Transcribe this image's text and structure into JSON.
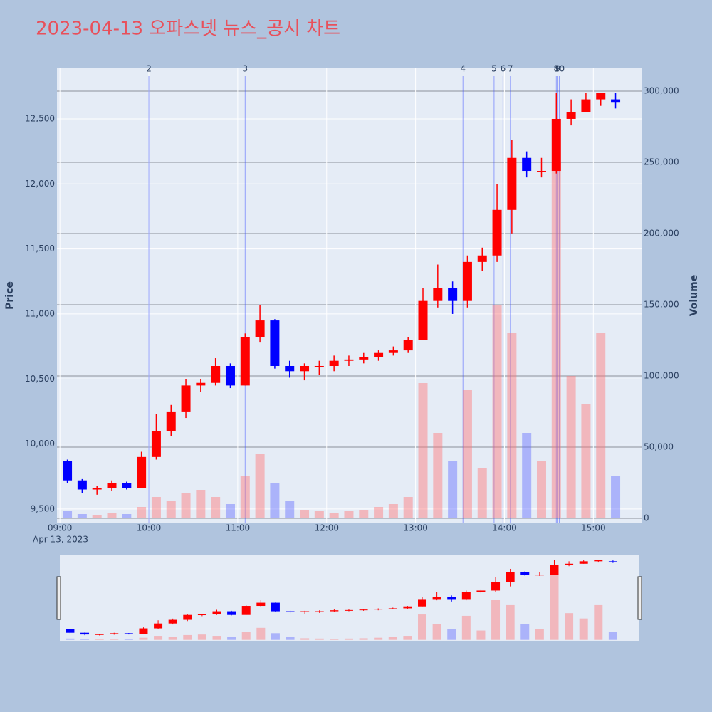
{
  "chart_data": {
    "type": "candlestick",
    "title": "2023-04-13 오파스넷 뉴스_공시 차트",
    "y_label": "Price",
    "y2_label": "Volume",
    "x_date_label": "Apr 13, 2023",
    "increasing_color": "#ff0000",
    "decreasing_color": "#0000ff",
    "volume_increasing_color": "rgba(255,120,120,0.45)",
    "volume_decreasing_color": "rgba(100,110,255,0.45)",
    "news_color": "rgba(60,80,255,0.5)",
    "grid": true,
    "x": [
      "09:00",
      "09:10",
      "09:20",
      "09:30",
      "09:40",
      "09:50",
      "10:00",
      "10:10",
      "10:20",
      "10:30",
      "10:40",
      "10:50",
      "11:00",
      "11:10",
      "11:20",
      "11:30",
      "11:40",
      "11:50",
      "12:00",
      "12:10",
      "12:20",
      "12:30",
      "12:40",
      "12:50",
      "13:00",
      "13:10",
      "13:20",
      "13:30",
      "13:40",
      "13:50",
      "14:00",
      "14:10",
      "14:20",
      "14:30",
      "14:40",
      "14:50",
      "15:00",
      "15:10"
    ],
    "open": [
      9870,
      9720,
      9650,
      9660,
      9700,
      9660,
      9900,
      10100,
      10250,
      10450,
      10470,
      10600,
      10450,
      10820,
      10950,
      10600,
      10560,
      10600,
      10600,
      10640,
      10650,
      10670,
      10700,
      10720,
      10800,
      11100,
      11200,
      11100,
      11400,
      11450,
      11800,
      12200,
      12100,
      12100,
      12500,
      12550,
      12650,
      12650
    ],
    "high": [
      9880,
      9730,
      9680,
      9720,
      9710,
      9940,
      10230,
      10300,
      10500,
      10500,
      10660,
      10620,
      10850,
      11070,
      10960,
      10640,
      10620,
      10640,
      10680,
      10680,
      10700,
      10720,
      10750,
      10820,
      11200,
      11380,
      11250,
      11450,
      11510,
      12000,
      12340,
      12250,
      12200,
      12700,
      12650,
      12700,
      12700,
      12700
    ],
    "low": [
      9700,
      9620,
      9610,
      9640,
      9650,
      9660,
      9880,
      10060,
      10200,
      10400,
      10450,
      10430,
      10450,
      10780,
      10580,
      10510,
      10490,
      10530,
      10560,
      10600,
      10620,
      10640,
      10680,
      10700,
      10800,
      11050,
      11000,
      11050,
      11330,
      11400,
      11620,
      12050,
      12050,
      12080,
      12450,
      12550,
      12600,
      12580
    ],
    "close": [
      9720,
      9650,
      9660,
      9700,
      9660,
      9900,
      10100,
      10250,
      10450,
      10470,
      10600,
      10450,
      10820,
      10950,
      10600,
      10560,
      10600,
      10600,
      10640,
      10650,
      10670,
      10700,
      10720,
      10800,
      11100,
      11200,
      11100,
      11400,
      11450,
      11800,
      12200,
      12100,
      12100,
      12500,
      12550,
      12650,
      12700,
      12630
    ],
    "volume": [
      5000,
      3000,
      2000,
      4000,
      3000,
      8000,
      15000,
      12000,
      18000,
      20000,
      15000,
      10000,
      30000,
      45000,
      25000,
      12000,
      6000,
      5000,
      4000,
      5000,
      6000,
      8000,
      10000,
      15000,
      95000,
      60000,
      40000,
      90000,
      35000,
      150000,
      130000,
      60000,
      40000,
      250000,
      100000,
      80000,
      130000,
      30000
    ],
    "xlim": [
      "08:58",
      "15:33"
    ],
    "xticks": [
      "09:00",
      "10:00",
      "11:00",
      "12:00",
      "13:00",
      "14:00",
      "15:00"
    ],
    "ylim": [
      9390,
      12894
    ],
    "yticks": [
      {
        "value": 9500,
        "label": "9,500"
      },
      {
        "value": 10000,
        "label": "10,000"
      },
      {
        "value": 10500,
        "label": "10,500"
      },
      {
        "value": 11000,
        "label": "11,000"
      },
      {
        "value": 11500,
        "label": "11,500"
      },
      {
        "value": 12000,
        "label": "12,000"
      },
      {
        "value": 12500,
        "label": "12,500"
      }
    ],
    "y2lim": [
      -3500,
      316500
    ],
    "y2ticks": [
      0,
      {
        "value": 50000,
        "label": "50,000"
      },
      {
        "value": 100000,
        "label": "100,000"
      },
      {
        "value": 150000,
        "label": "150,000"
      },
      {
        "value": 200000,
        "label": "200,000"
      },
      {
        "value": 250000,
        "label": "250,000"
      },
      {
        "value": 300000,
        "label": "300,000"
      }
    ],
    "news": [
      {
        "label": "2",
        "x": "10:00"
      },
      {
        "label": "3",
        "x": "11:05"
      },
      {
        "label": "4",
        "x": "13:32"
      },
      {
        "label": "5",
        "x": "13:53"
      },
      {
        "label": "6",
        "x": "13:59"
      },
      {
        "label": "7",
        "x": "14:04"
      },
      {
        "label": "8",
        "x": "14:35"
      },
      {
        "label": "9",
        "x": "14:36"
      },
      {
        "label": "10",
        "x": "14:37"
      }
    ]
  }
}
